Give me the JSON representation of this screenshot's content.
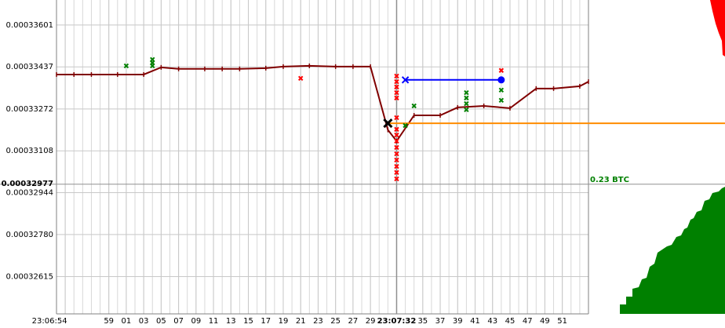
{
  "chart_data": {
    "type": "line",
    "xlim": [
      "23:06:53",
      "23:07:54"
    ],
    "ylim": [
      0.00032469,
      0.00033699
    ],
    "xticks": [
      "23:06:54",
      {
        "value": "23:06:59",
        "label": "59"
      },
      {
        "value": "23:07:01",
        "label": "01"
      },
      {
        "value": "23:07:03",
        "label": "03"
      },
      {
        "value": "23:07:05",
        "label": "05"
      },
      {
        "value": "23:07:07",
        "label": "07"
      },
      {
        "value": "23:07:09",
        "label": "09"
      },
      {
        "value": "23:07:11",
        "label": "11"
      },
      {
        "value": "23:07:13",
        "label": "13"
      },
      {
        "value": "23:07:15",
        "label": "15"
      },
      {
        "value": "23:07:17",
        "label": "17"
      },
      {
        "value": "23:07:19",
        "label": "19"
      },
      {
        "value": "23:07:21",
        "label": "21"
      },
      {
        "value": "23:07:23",
        "label": "23"
      },
      {
        "value": "23:07:25",
        "label": "25"
      },
      {
        "value": "23:07:27",
        "label": "27"
      },
      {
        "value": "23:07:29",
        "label": "29"
      },
      "23:07:32",
      {
        "value": "23:07:35",
        "label": "35"
      },
      {
        "value": "23:07:37",
        "label": "37"
      },
      {
        "value": "23:07:39",
        "label": "39"
      },
      {
        "value": "23:07:41",
        "label": "41"
      },
      {
        "value": "23:07:43",
        "label": "43"
      },
      {
        "value": "23:07:45",
        "label": "45"
      },
      {
        "value": "23:07:47",
        "label": "47"
      },
      {
        "value": "23:07:49",
        "label": "49"
      },
      {
        "value": "23:07:51",
        "label": "51"
      }
    ],
    "current_time": "23:07:32",
    "yticks": [
      0.00033601,
      0.00033437,
      0.00033272,
      0.00033108,
      0.00032944,
      {
        "value": 0.0003278,
        "label": "0.00032780"
      },
      0.00032615
    ],
    "current_price": 0.00032977,
    "depth_label": "0.23 BTC",
    "grid": true,
    "series": [
      {
        "color": "#800000",
        "x": [
          "23:06:53",
          "23:06:55",
          "23:06:57",
          "23:07:00",
          "23:07:03",
          "23:07:05",
          "23:07:07",
          "23:07:10",
          "23:07:12",
          "23:07:14",
          "23:07:17",
          "23:07:19",
          "23:07:22",
          "23:07:25",
          "23:07:27",
          "23:07:29",
          "23:07:31",
          "23:07:32",
          "23:07:34",
          "23:07:37",
          "23:07:39",
          "23:07:42",
          "23:07:45",
          "23:07:48",
          "23:07:50",
          "23:07:53",
          "23:07:54"
        ],
        "values": [
          0.00033407,
          0.00033407,
          0.00033407,
          0.00033407,
          0.00033407,
          0.00033435,
          0.00033429,
          0.00033429,
          0.00033429,
          0.00033429,
          0.00033432,
          0.00033438,
          0.00033441,
          0.00033438,
          0.00033438,
          0.00033438,
          0.0003319,
          0.00033146,
          0.00033247,
          0.00033247,
          0.00033278,
          0.00033284,
          0.00033275,
          0.00033352,
          0.00033352,
          0.00033361,
          0.00033379
        ]
      }
    ],
    "trades": [
      {
        "color": "#008000",
        "x": [
          "23:07:01",
          "23:07:04",
          "23:07:04",
          "23:07:04",
          "23:07:33",
          "23:07:34",
          "23:07:40",
          "23:07:40",
          "23:07:40",
          "23:07:40",
          "23:07:44",
          "23:07:44"
        ],
        "values": [
          0.00033441,
          0.00033466,
          0.00033453,
          0.00033441,
          0.00033207,
          0.00033284,
          0.00033336,
          0.00033315,
          0.00033293,
          0.00033269,
          0.00033346,
          0.00033306
        ]
      },
      {
        "color": "#ff0000",
        "x": [
          "23:07:21",
          "23:07:32",
          "23:07:32",
          "23:07:32",
          "23:07:32",
          "23:07:32",
          "23:07:32",
          "23:07:32",
          "23:07:32",
          "23:07:32",
          "23:07:32",
          "23:07:32",
          "23:07:32",
          "23:07:32",
          "23:07:32",
          "23:07:32",
          "23:07:44"
        ],
        "values": [
          0.00033392,
          0.00033401,
          0.00033379,
          0.00033358,
          0.00033336,
          0.00033315,
          0.00033238,
          0.00033192,
          0.0003317,
          0.00033146,
          0.00033121,
          0.00033096,
          0.00033072,
          0.00033047,
          0.00033023,
          0.00032998,
          0.00033423
        ]
      }
    ],
    "order_line": {
      "color": "#0000ff",
      "x": [
        "23:07:33",
        "23:07:44"
      ],
      "values": [
        0.00033386,
        0.00033386
      ]
    },
    "position_line": {
      "color": "#ff8c00",
      "x": "23:07:31",
      "value": 0.00033216
    },
    "entry": {
      "color": "#000000",
      "x": "23:07:31",
      "value": 0.00033216
    }
  }
}
